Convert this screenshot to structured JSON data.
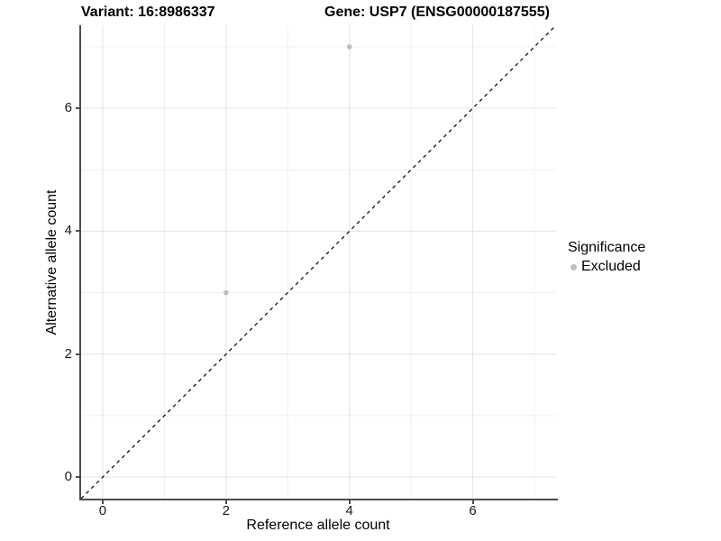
{
  "chart_data": {
    "type": "scatter",
    "title_left": "Variant: 16:8986337",
    "title_right": "Gene: USP7 (ENSG00000187555)",
    "xlabel": "Reference allele count",
    "ylabel": "Alternative allele count",
    "xlim": [
      -0.35,
      7.35
    ],
    "ylim": [
      -0.35,
      7.35
    ],
    "x_major_ticks": [
      0,
      2,
      4,
      6
    ],
    "y_major_ticks": [
      0,
      2,
      4,
      6
    ],
    "x_minor_gridlines": [
      1,
      3,
      5,
      7
    ],
    "y_minor_gridlines": [
      1,
      3,
      5,
      7
    ],
    "grid": true,
    "legend_position": "right",
    "series": [
      {
        "name": "Excluded",
        "marker": "circle",
        "color": "#bebebe",
        "points": [
          {
            "x": 2,
            "y": 3
          },
          {
            "x": 4,
            "y": 7
          }
        ]
      }
    ],
    "reference_line": {
      "type": "diagonal",
      "style": "dashed",
      "color": "#000000",
      "x1": -0.35,
      "y1": -0.35,
      "x2": 7.35,
      "y2": 7.35
    },
    "legend": {
      "title": "Significance",
      "items": [
        {
          "label": "Excluded",
          "color": "#bebebe",
          "marker": "circle-icon"
        }
      ]
    },
    "colors": {
      "background": "#ffffff",
      "grid_major": "#e3e3e3",
      "grid_minor": "#f1f1f1",
      "axis_line": "#4d4d4d",
      "tick_text": "#1a1a1a",
      "point": "#bebebe"
    }
  }
}
